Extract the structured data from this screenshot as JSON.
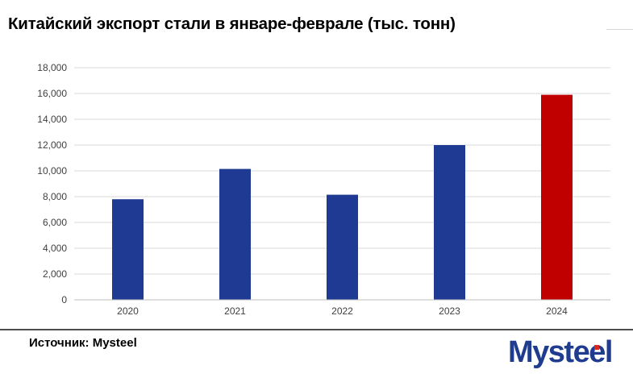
{
  "title": "Китайский экспорт стали в январе-феврале (тыс. тонн)",
  "source": "Источник: Mysteel",
  "logo": {
    "text": "Mysteel",
    "color": "#1f3c8f",
    "accent": "#e0261b"
  },
  "chart_data": {
    "type": "bar",
    "title": "Китайский экспорт стали в январе-феврале (тыс. тонн)",
    "categories": [
      "2020",
      "2021",
      "2022",
      "2023",
      "2024"
    ],
    "values": [
      7800,
      10150,
      8150,
      12000,
      15900
    ],
    "colors": [
      "#1f3a93",
      "#1f3a93",
      "#1f3a93",
      "#1f3a93",
      "#c00000"
    ],
    "ylim": [
      0,
      18000
    ],
    "yticks": [
      0,
      2000,
      4000,
      6000,
      8000,
      10000,
      12000,
      14000,
      16000,
      18000
    ],
    "ytick_labels": [
      "0",
      "2,000",
      "4,000",
      "6,000",
      "8,000",
      "10,000",
      "12,000",
      "14,000",
      "16,000",
      "18,000"
    ],
    "grid": true,
    "legend": "none",
    "xlabel": "",
    "ylabel": ""
  }
}
